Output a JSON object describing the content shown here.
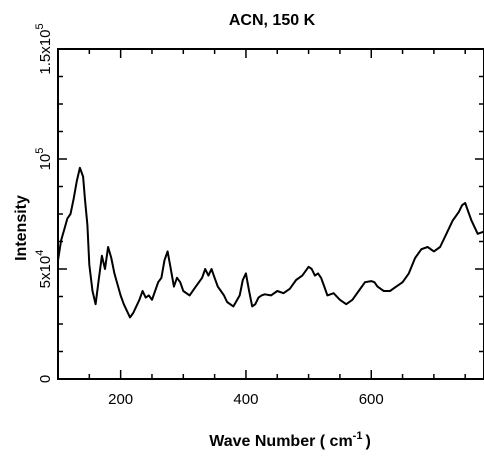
{
  "chart_data": {
    "type": "line",
    "title": "ACN, 150 K",
    "xlabel": "Wave Number ( cm",
    "xlabel_sup": "-1",
    "xlabel_close": ")",
    "ylabel": "Intensity",
    "xlim": [
      100,
      780
    ],
    "ylim": [
      0,
      150000
    ],
    "x_ticks": [
      200,
      400,
      600
    ],
    "x_tick_labels": [
      "200",
      "400",
      "600"
    ],
    "y_ticks": [
      {
        "value": 0,
        "base": "0",
        "exp": ""
      },
      {
        "value": 50000,
        "base": "5x10",
        "exp": "4"
      },
      {
        "value": 100000,
        "base": "10",
        "exp": "5"
      },
      {
        "value": 150000,
        "base": "1.5x10",
        "exp": "5"
      }
    ],
    "grid": false,
    "series": [
      {
        "color": "#000000",
        "x": [
          100,
          105,
          110,
          115,
          120,
          125,
          130,
          135,
          140,
          143,
          147,
          150,
          155,
          160,
          165,
          170,
          175,
          180,
          185,
          190,
          195,
          200,
          205,
          210,
          215,
          220,
          225,
          230,
          235,
          240,
          245,
          250,
          255,
          260,
          265,
          270,
          275,
          280,
          285,
          290,
          295,
          300,
          310,
          320,
          330,
          335,
          340,
          345,
          350,
          355,
          360,
          365,
          370,
          380,
          390,
          395,
          400,
          405,
          410,
          415,
          420,
          425,
          430,
          440,
          450,
          460,
          470,
          480,
          490,
          500,
          505,
          510,
          515,
          520,
          525,
          530,
          540,
          550,
          560,
          570,
          580,
          590,
          600,
          605,
          610,
          620,
          630,
          640,
          650,
          660,
          670,
          680,
          690,
          700,
          710,
          720,
          730,
          740,
          745,
          750,
          755,
          760,
          770,
          780
        ],
        "y": [
          54000,
          63000,
          68000,
          73000,
          75000,
          82000,
          90000,
          96000,
          92000,
          82000,
          70000,
          52000,
          40000,
          34000,
          45000,
          56000,
          50000,
          60000,
          55000,
          48000,
          43000,
          38000,
          34000,
          31000,
          28000,
          30000,
          33000,
          36000,
          40000,
          37000,
          38000,
          36000,
          40000,
          44000,
          46000,
          54000,
          58000,
          50000,
          42000,
          46000,
          44000,
          40000,
          38000,
          42000,
          46000,
          50000,
          47000,
          50000,
          46000,
          42000,
          40000,
          38000,
          35000,
          33000,
          38000,
          45000,
          48000,
          40000,
          33000,
          34000,
          37000,
          38000,
          38500,
          38000,
          40000,
          39000,
          41000,
          45000,
          47000,
          51000,
          50000,
          47000,
          48000,
          46000,
          42000,
          38000,
          39000,
          36000,
          34000,
          36000,
          40000,
          44000,
          44500,
          44000,
          42000,
          40000,
          40000,
          42000,
          44000,
          48000,
          55000,
          59000,
          60000,
          58000,
          60000,
          66000,
          72000,
          76000,
          79000,
          80000,
          76000,
          72000,
          66000,
          67000
        ]
      }
    ]
  }
}
